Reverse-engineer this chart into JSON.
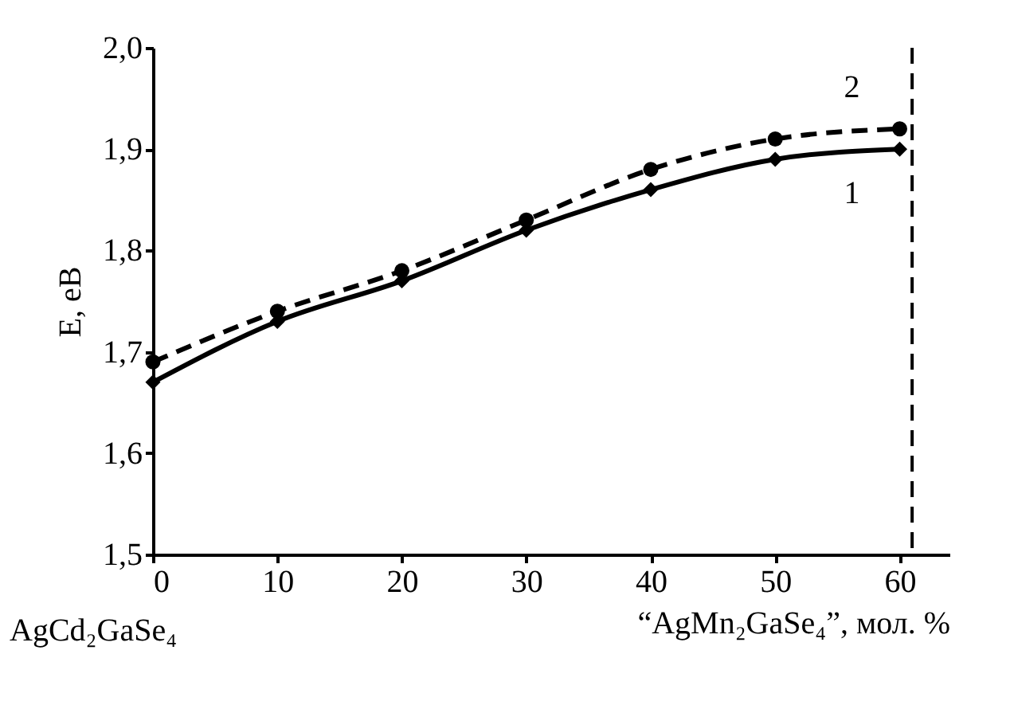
{
  "chart_data": {
    "type": "line",
    "xlabel": "“AgMn₂GaSe₄”, мол. %",
    "ylabel": "E, eB",
    "annotations": [
      "AgCd₂GaSe₄"
    ],
    "x": [
      0,
      10,
      20,
      30,
      40,
      50,
      60
    ],
    "series": [
      {
        "name": "1",
        "color": "#000000",
        "marker": "diamond",
        "line_style": "solid",
        "values": [
          1.67,
          1.73,
          1.77,
          1.82,
          1.86,
          1.89,
          1.9
        ]
      },
      {
        "name": "2",
        "color": "#000000",
        "marker": "circle",
        "line_style": "dashed",
        "values": [
          1.69,
          1.74,
          1.78,
          1.83,
          1.88,
          1.91,
          1.92
        ]
      }
    ],
    "xlim": [
      0,
      64
    ],
    "xticks": [
      0,
      10,
      20,
      30,
      40,
      50,
      60
    ],
    "ylim": [
      1.5,
      2.0
    ],
    "yticks": [
      {
        "value": 1.5,
        "label": "1,5"
      },
      {
        "value": 1.6,
        "label": "1,6"
      },
      {
        "value": 1.7,
        "label": "1,7"
      },
      {
        "value": 1.8,
        "label": "1,8"
      },
      {
        "value": 1.9,
        "label": "1,9"
      },
      {
        "value": 2.0,
        "label": "2,0"
      }
    ],
    "ref_lines": [
      {
        "axis": "x",
        "value": 61,
        "line_style": "dashed",
        "color": "#000000"
      }
    ],
    "grid": false
  }
}
